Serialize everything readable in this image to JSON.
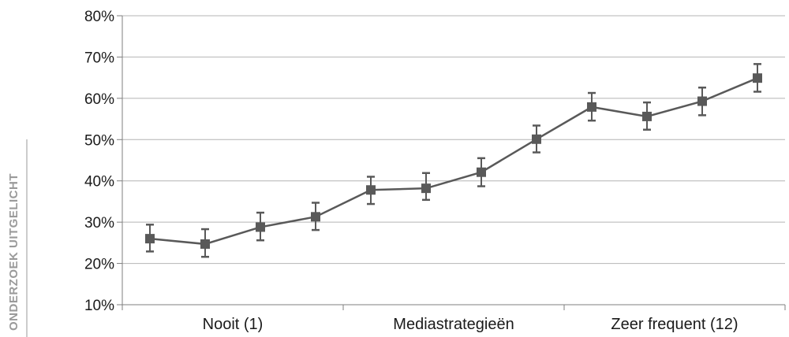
{
  "side_text": "ONDERZOEK UITGELICHT",
  "chart_data": {
    "type": "line",
    "title": "",
    "xlabel": "",
    "ylabel": "",
    "x": [
      1,
      2,
      3,
      4,
      5,
      6,
      7,
      8,
      9,
      10,
      11,
      12
    ],
    "category_labels": [
      "Nooit (1)",
      "Mediastrategieën",
      "Zeer frequent (12)"
    ],
    "y_ticks": [
      "10%",
      "20%",
      "30%",
      "40%",
      "50%",
      "60%",
      "70%",
      "80%"
    ],
    "ylim": [
      10,
      80
    ],
    "grid": true,
    "legend": "none",
    "series": [
      {
        "values": [
          26,
          24.7,
          28.8,
          31.3,
          37.8,
          38.2,
          42.1,
          50.1,
          57.9,
          55.6,
          59.3,
          64.9
        ],
        "error_low": [
          22.9,
          21.6,
          25.6,
          28.1,
          34.4,
          35.4,
          38.7,
          46.9,
          54.6,
          52.4,
          55.9,
          61.6
        ],
        "error_high": [
          29.4,
          28.3,
          32.3,
          34.7,
          41.0,
          41.9,
          45.5,
          53.4,
          61.3,
          59.0,
          62.6,
          68.3
        ]
      }
    ],
    "colors": {
      "line": "#595959",
      "marker": "#595959",
      "grid": "#b4b4b4",
      "axis": "#7f7f7f"
    }
  }
}
